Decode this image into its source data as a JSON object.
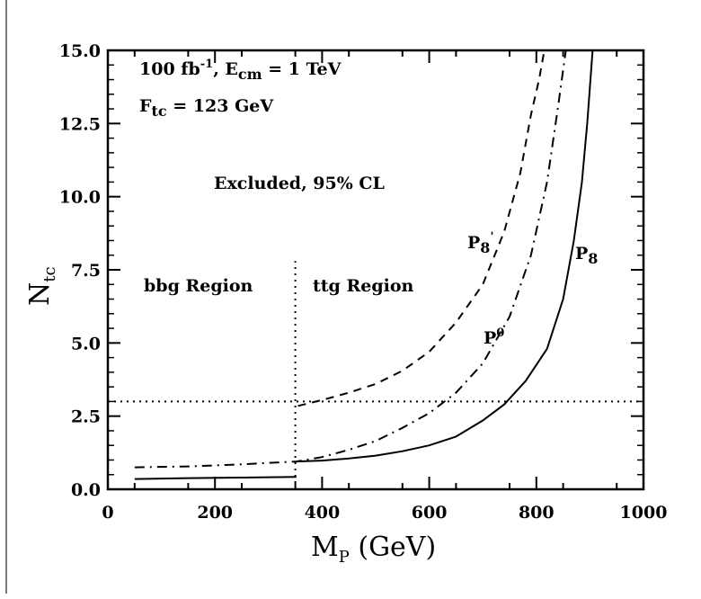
{
  "chart_data": {
    "type": "line",
    "xlabel": {
      "main": "M",
      "sub": "P",
      "rest": " (GeV)"
    },
    "ylabel": {
      "main": "N",
      "sub": "tc"
    },
    "xlim": [
      0,
      1000
    ],
    "ylim": [
      0,
      15
    ],
    "xticks": [
      "0",
      "200",
      "400",
      "600",
      "800",
      "1000"
    ],
    "yticks": [
      "0.0",
      "2.5",
      "5.0",
      "7.5",
      "10.0",
      "12.5",
      "15.0"
    ],
    "annotations": {
      "line1_a": "100 fb",
      "line1_sup": "-1",
      "line1_b": ", E",
      "line1_sub": "cm",
      "line1_c": " = 1 TeV",
      "line2_a": "F",
      "line2_sub": "tc",
      "line2_b": " = 123 GeV",
      "excluded": "Excluded, 95% CL",
      "bbg": "bbg Region",
      "ttg": "ttg Region"
    },
    "series": [
      {
        "name": "P_8",
        "label_main": "P",
        "label_sub": "8",
        "style": "solid",
        "segments": [
          [
            [
              50,
              0.35
            ],
            [
              150,
              0.38
            ],
            [
              250,
              0.4
            ],
            [
              352,
              0.42
            ]
          ],
          [
            [
              352,
              0.95
            ],
            [
              400,
              0.98
            ],
            [
              450,
              1.05
            ],
            [
              500,
              1.15
            ],
            [
              550,
              1.3
            ],
            [
              600,
              1.5
            ],
            [
              650,
              1.8
            ],
            [
              700,
              2.35
            ],
            [
              740,
              2.9
            ],
            [
              780,
              3.7
            ],
            [
              820,
              4.8
            ],
            [
              850,
              6.5
            ],
            [
              870,
              8.5
            ],
            [
              885,
              10.5
            ],
            [
              895,
              12.5
            ],
            [
              905,
              15.0
            ]
          ]
        ]
      },
      {
        "name": "P_8^",
        "label_main": "P",
        "label_sub": "8",
        "label_sup": "'",
        "style": "dashed",
        "segments": [
          [
            [
              355,
              2.85
            ],
            [
              400,
              3.05
            ],
            [
              450,
              3.3
            ],
            [
              500,
              3.6
            ],
            [
              550,
              4.05
            ],
            [
              600,
              4.7
            ],
            [
              650,
              5.7
            ],
            [
              700,
              7.0
            ],
            [
              740,
              8.8
            ],
            [
              770,
              10.8
            ],
            [
              790,
              12.8
            ],
            [
              805,
              14.0
            ],
            [
              815,
              15.0
            ]
          ]
        ]
      },
      {
        "name": "P^0",
        "label_main": "P",
        "label_sup": "0",
        "style": "dashdot",
        "segments": [
          [
            [
              50,
              0.75
            ],
            [
              150,
              0.78
            ],
            [
              250,
              0.85
            ],
            [
              352,
              0.95
            ],
            [
              400,
              1.1
            ],
            [
              450,
              1.35
            ],
            [
              500,
              1.65
            ],
            [
              550,
              2.1
            ],
            [
              600,
              2.6
            ],
            [
              650,
              3.3
            ],
            [
              700,
              4.3
            ],
            [
              750,
              5.9
            ],
            [
              790,
              8.0
            ],
            [
              820,
              10.5
            ],
            [
              840,
              13.0
            ],
            [
              855,
              15.0
            ]
          ]
        ]
      }
    ],
    "hline_y": 3.0,
    "vline_x": 350
  }
}
